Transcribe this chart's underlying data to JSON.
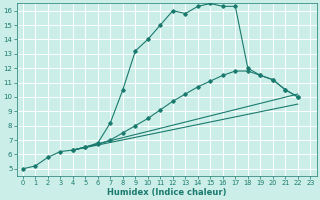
{
  "xlabel": "Humidex (Indice chaleur)",
  "bg_color": "#cceee8",
  "grid_color": "#ffffff",
  "line_color": "#1a7a6e",
  "main_x": [
    0,
    1,
    2,
    3,
    4,
    5,
    6,
    7,
    8,
    9,
    10,
    11,
    12,
    13,
    14,
    15,
    16,
    17,
    18,
    19,
    20,
    21,
    22
  ],
  "main_y": [
    5,
    5.2,
    5.8,
    6.2,
    6.3,
    6.5,
    6.8,
    8.2,
    10.5,
    13.2,
    14.0,
    15.0,
    16.0,
    15.8,
    16.3,
    16.5,
    16.3,
    16.3,
    12.0,
    11.5,
    11.2,
    10.5,
    10.0
  ],
  "curve2_x": [
    4,
    5,
    6,
    7,
    8,
    9,
    10,
    11,
    12,
    13,
    14,
    15,
    16,
    17,
    18,
    19,
    20,
    21,
    22
  ],
  "curve2_y": [
    6.3,
    6.5,
    6.7,
    7.0,
    7.5,
    8.0,
    8.5,
    9.1,
    9.7,
    10.2,
    10.7,
    11.1,
    11.5,
    11.8,
    11.8,
    11.5,
    11.2,
    10.5,
    10.0
  ],
  "line1_x": [
    4,
    22
  ],
  "line1_y": [
    6.3,
    10.2
  ],
  "line2_x": [
    4,
    22
  ],
  "line2_y": [
    6.3,
    9.5
  ],
  "xlim": [
    -0.5,
    23.5
  ],
  "ylim": [
    4.5,
    16.5
  ],
  "xticks": [
    0,
    1,
    2,
    3,
    4,
    5,
    6,
    7,
    8,
    9,
    10,
    11,
    12,
    13,
    14,
    15,
    16,
    17,
    18,
    19,
    20,
    21,
    22,
    23
  ],
  "yticks": [
    5,
    6,
    7,
    8,
    9,
    10,
    11,
    12,
    13,
    14,
    15,
    16
  ]
}
